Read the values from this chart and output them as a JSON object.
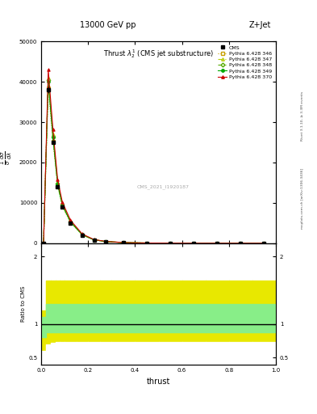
{
  "title_top": "13000 GeV pp",
  "title_right": "Z+Jet",
  "plot_title": "Thrust $\\lambda_2^1$ (CMS jet substructure)",
  "xlabel": "thrust",
  "watermark": "CMS_2021_I1920187",
  "right_label1": "Rivet 3.1.10, ≥ 3.3M events",
  "right_label2": "mcplots.cern.ch [arXiv:1306.3436]",
  "thrust_bins": [
    0.0,
    0.02,
    0.04,
    0.06,
    0.08,
    0.1,
    0.15,
    0.2,
    0.25,
    0.3,
    0.4,
    0.5,
    0.6,
    0.7,
    0.8,
    0.9,
    1.0
  ],
  "cms_x": [
    0.01,
    0.03,
    0.05,
    0.07,
    0.09,
    0.125,
    0.175,
    0.225,
    0.275,
    0.35,
    0.45,
    0.55,
    0.65,
    0.75,
    0.85,
    0.95
  ],
  "cms_y": [
    0,
    38000,
    25000,
    14000,
    9000,
    5000,
    2000,
    800,
    400,
    150,
    50,
    20,
    8,
    3,
    1,
    0.5
  ],
  "p346_y": [
    0,
    38500,
    25300,
    14200,
    9100,
    5100,
    2020,
    810,
    404,
    152,
    51,
    21,
    8,
    3,
    1,
    0.5
  ],
  "p347_y": [
    0,
    41000,
    27000,
    15200,
    9700,
    5400,
    2160,
    865,
    432,
    162,
    54,
    22,
    8.6,
    3.2,
    1.1,
    0.5
  ],
  "p348_y": [
    0,
    40500,
    26500,
    14800,
    9550,
    5300,
    2120,
    848,
    424,
    159,
    53,
    21.5,
    8.4,
    3.1,
    1.1,
    0.5
  ],
  "p349_y": [
    0,
    40000,
    26200,
    14600,
    9450,
    5250,
    2100,
    840,
    420,
    157,
    52.5,
    21.2,
    8.3,
    3.1,
    1.05,
    0.5
  ],
  "p370_y": [
    0,
    43000,
    28200,
    15800,
    10200,
    5700,
    2280,
    912,
    456,
    171,
    57,
    23,
    9,
    3.4,
    1.2,
    0.5
  ],
  "color_346": "#c8a000",
  "color_347": "#b8cc00",
  "color_348": "#55aa00",
  "color_349": "#00aa00",
  "color_370": "#cc0000",
  "ylim_main": [
    0,
    50000
  ],
  "yticks_main": [
    0,
    10000,
    20000,
    30000,
    40000,
    50000
  ],
  "ylim_ratio": [
    0.4,
    2.2
  ],
  "ratio_yticks": [
    0.5,
    1.0,
    2.0
  ],
  "yellow_bins": [
    0.0,
    0.02,
    0.04,
    0.06,
    0.08,
    0.1,
    0.15,
    0.2,
    0.25,
    0.3,
    0.4,
    0.5,
    0.6,
    0.7,
    0.8,
    0.9,
    1.0
  ],
  "yellow_lo": [
    0.6,
    0.7,
    0.72,
    0.73,
    0.73,
    0.73,
    0.73,
    0.73,
    0.73,
    0.73,
    0.73,
    0.73,
    0.73,
    0.73,
    0.73,
    0.73,
    0.73
  ],
  "yellow_hi": [
    1.2,
    1.65,
    1.65,
    1.65,
    1.65,
    1.65,
    1.65,
    1.65,
    1.65,
    1.65,
    1.65,
    1.65,
    1.65,
    1.65,
    1.65,
    1.65,
    1.65
  ],
  "green_lo": [
    0.8,
    0.88,
    0.88,
    0.88,
    0.88,
    0.88,
    0.88,
    0.88,
    0.88,
    0.88,
    0.88,
    0.88,
    0.88,
    0.88,
    0.88,
    0.88,
    0.88
  ],
  "green_hi": [
    1.1,
    1.3,
    1.3,
    1.3,
    1.3,
    1.3,
    1.3,
    1.3,
    1.3,
    1.3,
    1.3,
    1.3,
    1.3,
    1.3,
    1.3,
    1.3,
    1.3
  ],
  "white_lo": [
    0.4,
    0.4,
    0.5,
    0.5,
    0.5,
    0.5,
    0.5,
    0.5,
    0.5,
    0.5,
    0.5,
    0.5,
    0.5,
    0.5,
    0.5,
    0.5,
    0.5
  ],
  "white_hi": [
    0.6,
    0.7,
    0.72,
    0.73,
    0.73,
    0.73,
    0.73,
    0.73,
    0.73,
    0.73,
    0.73,
    0.73,
    0.73,
    0.73,
    0.73,
    0.73,
    0.73
  ]
}
